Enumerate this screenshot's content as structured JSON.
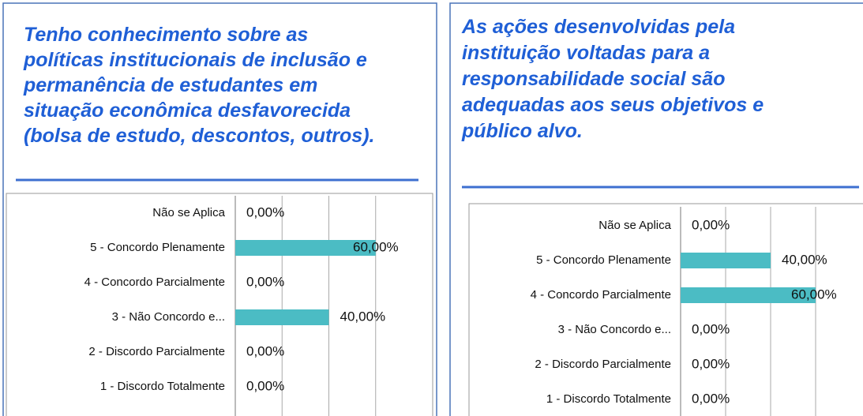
{
  "chart_data": [
    {
      "type": "bar",
      "title": [
        "Tenho conhecimento  sobre as",
        "políticas institucionais de inclusão e",
        "permanência de estudantes  em",
        "situação  econômica desfavorecida",
        "(bolsa de estudo, descontos, outros)."
      ],
      "categories": [
        "Não se Aplica",
        "5 - Concordo Plenamente",
        "4 - Concordo Parcialmente",
        "3 - Não Concordo e...",
        "2 - Discordo Parcialmente",
        "1 - Discordo Totalmente"
      ],
      "values": [
        0,
        60,
        0,
        40,
        0,
        0
      ],
      "value_labels": [
        "0,00%",
        "60,00%",
        "0,00%",
        "40,00%",
        "0,00%",
        "0,00%"
      ],
      "color": "#4bbcc4",
      "xlim": [
        0,
        80
      ],
      "xticks": [
        0,
        20,
        40,
        60
      ],
      "grid": true
    },
    {
      "type": "bar",
      "title": [
        "As ações desenvolvidas pela",
        "instituição voltadas para a",
        "responsabilidade social são",
        "adequadas aos seus objetivos e",
        "público alvo."
      ],
      "categories": [
        "Não se Aplica",
        "5 - Concordo Plenamente",
        "4 - Concordo Parcialmente",
        "3 - Não Concordo e...",
        "2 - Discordo Parcialmente",
        "1 - Discordo Totalmente"
      ],
      "values": [
        0,
        40,
        60,
        0,
        0,
        0
      ],
      "value_labels": [
        "0,00%",
        "40,00%",
        "60,00%",
        "0,00%",
        "0,00%",
        "0,00%"
      ],
      "color": "#4bbcc4",
      "xlim": [
        0,
        80
      ],
      "xticks": [
        0,
        20,
        40,
        60
      ],
      "grid": true
    }
  ]
}
